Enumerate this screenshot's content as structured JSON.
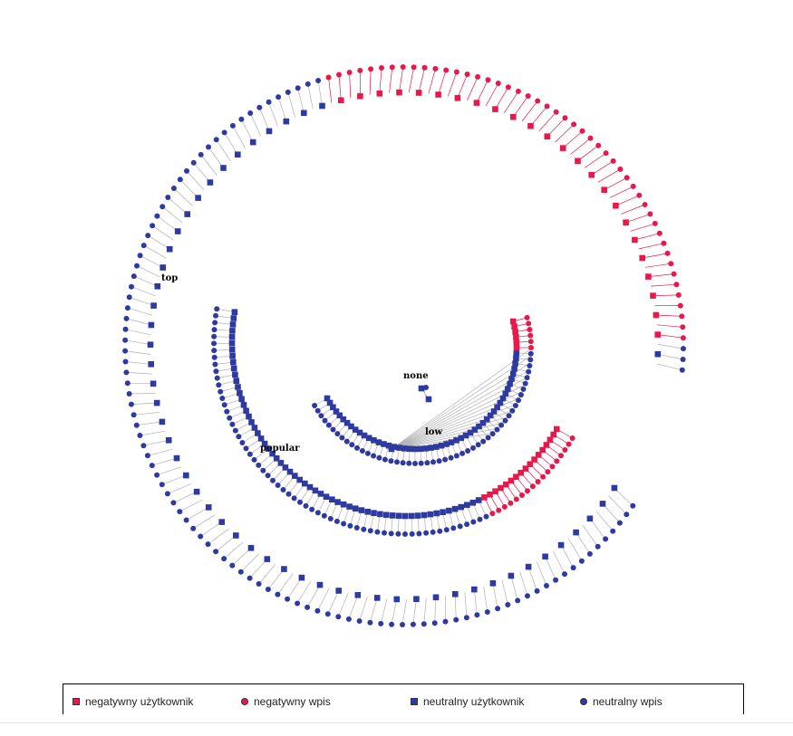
{
  "colors": {
    "negative": "#e8194a",
    "neutral": "#2e3aa0",
    "edge_negative": "#e8194a",
    "edge_neutral": "#b0b0b0"
  },
  "groups": [
    {
      "label": "top",
      "node_count": 150,
      "negative_from": 0.66,
      "negative_to": 0.98
    },
    {
      "label": "popular",
      "node_count": 78,
      "negative_from": 0.78,
      "negative_to": 1.0
    },
    {
      "label": "low",
      "node_count": 56,
      "negative_from": 0.9,
      "negative_to": 1.0
    },
    {
      "label": "none",
      "node_count": 2,
      "negative_from": 0,
      "negative_to": 0
    }
  ],
  "legend": [
    {
      "label": "negatywny użytkownik",
      "shape": "square",
      "color": "#e8194a"
    },
    {
      "label": "negatywny wpis",
      "shape": "circle",
      "color": "#e8194a"
    },
    {
      "label": "neutralny użytkownik",
      "shape": "square",
      "color": "#2e3aa0"
    },
    {
      "label": "neutralny wpis",
      "shape": "circle",
      "color": "#2e3aa0"
    }
  ]
}
